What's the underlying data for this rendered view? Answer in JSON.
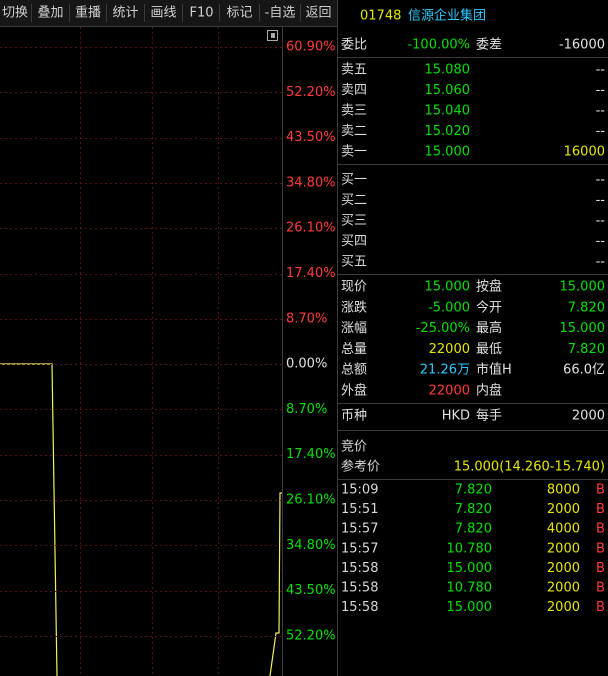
{
  "toolbar": [
    "切换",
    "叠加",
    "重播",
    "统计",
    "画线",
    "F10",
    "标记",
    "-自选",
    "返回"
  ],
  "header": {
    "code": "01748",
    "name": "信源企业集团"
  },
  "chart": {
    "axis_labels": [
      "60.90%",
      "52.20%",
      "43.50%",
      "34.80%",
      "26.10%",
      "17.40%",
      "8.70%",
      "0.00%",
      "8.70%",
      "17.40%",
      "26.10%",
      "34.80%",
      "43.50%",
      "52.20%"
    ]
  },
  "order_ratio": [
    "委比",
    "-100.00%",
    "委差",
    "-16000"
  ],
  "sells": [
    [
      "卖五",
      "15.080",
      "--"
    ],
    [
      "卖四",
      "15.060",
      "--"
    ],
    [
      "卖三",
      "15.040",
      "--"
    ],
    [
      "卖二",
      "15.020",
      "--"
    ],
    [
      "卖一",
      "15.000",
      "16000"
    ]
  ],
  "buys": [
    [
      "买一",
      "--"
    ],
    [
      "买二",
      "--"
    ],
    [
      "买三",
      "--"
    ],
    [
      "买四",
      "--"
    ],
    [
      "买五",
      "--"
    ]
  ],
  "stats": [
    [
      "现价",
      "15.000",
      "按盘",
      "15.000"
    ],
    [
      "涨跌",
      "-5.000",
      "今开",
      "7.820"
    ],
    [
      "涨幅",
      "-25.00%",
      "最高",
      "15.000"
    ],
    [
      "总量",
      "22000",
      "最低",
      "7.820"
    ],
    [
      "总额",
      "21.26万",
      "市值H",
      "66.0亿"
    ],
    [
      "外盘",
      "22000",
      "内盘"
    ]
  ],
  "currency": [
    "币种",
    "HKD",
    "每手",
    "2000"
  ],
  "auction": {
    "label": "竞价",
    "ref_label": "参考价",
    "ref_value": "15.000(14.260-15.740)"
  },
  "trades": [
    [
      "15:09",
      "7.820",
      "8000",
      "B"
    ],
    [
      "15:51",
      "7.820",
      "2000",
      "B"
    ],
    [
      "15:57",
      "7.820",
      "4000",
      "B"
    ],
    [
      "15:57",
      "10.780",
      "2000",
      "B"
    ],
    [
      "15:58",
      "15.000",
      "2000",
      "B"
    ],
    [
      "15:58",
      "10.780",
      "2000",
      "B"
    ],
    [
      "15:58",
      "15.000",
      "2000",
      "B"
    ]
  ]
}
